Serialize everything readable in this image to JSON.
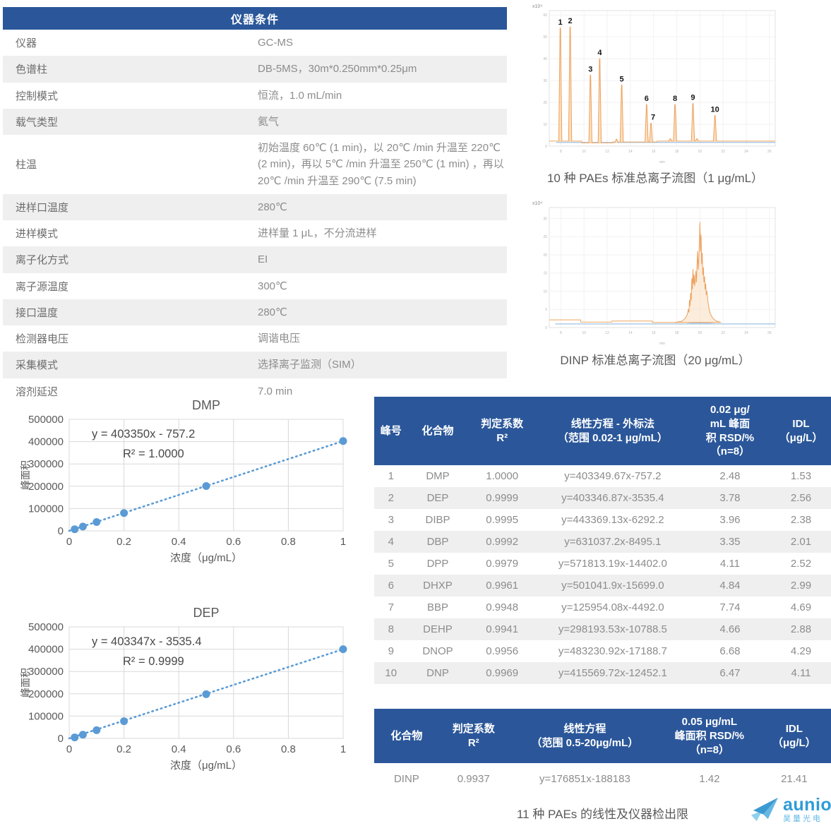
{
  "captions": {
    "bottom": "11 种 PAEs 的线性及仪器检出限"
  },
  "logo": {
    "brand": "aunion",
    "sub": "昊量光电"
  },
  "conditions_table": {
    "title": "仪器条件",
    "rows": [
      [
        "仪器",
        "GC-MS"
      ],
      [
        "色谱柱",
        "DB-5MS，30m*0.250mm*0.25μm"
      ],
      [
        "控制模式",
        "恒流，1.0 mL/min"
      ],
      [
        "载气类型",
        "氦气"
      ],
      [
        "柱温",
        "初始温度 60℃ (1 min)，以 20℃ /min 升温至 220℃ (2 min)，再以 5℃ /min 升温至 250℃ (1 min) ，再以 20℃ /min 升温至 290℃ (7.5 min)"
      ],
      [
        "进样口温度",
        "280℃"
      ],
      [
        "进样模式",
        "进样量 1 μL，不分流进样"
      ],
      [
        "离子化方式",
        "EI"
      ],
      [
        "离子源温度",
        "300℃"
      ],
      [
        "接口温度",
        "280℃"
      ],
      [
        "检测器电压",
        "调谐电压"
      ],
      [
        "采集模式",
        "选择离子监测（SIM）"
      ],
      [
        "溶剂延迟",
        "7.0 min"
      ]
    ]
  },
  "linearity_table": {
    "headers": [
      {
        "lines": [
          "峰号"
        ]
      },
      {
        "lines": [
          "化合物"
        ]
      },
      {
        "lines": [
          "判定系数",
          "R²"
        ]
      },
      {
        "lines": [
          "线性方程 - 外标法",
          "（范围 0.02-1 μg/mL）"
        ]
      },
      {
        "lines": [
          "0.02 μg/",
          "mL 峰面",
          "积 RSD/%",
          "（n=8）"
        ]
      },
      {
        "lines": [
          "IDL",
          "（μg/L）"
        ]
      }
    ],
    "rows": [
      [
        "1",
        "DMP",
        "1.0000",
        "y=403349.67x-757.2",
        "2.48",
        "1.53"
      ],
      [
        "2",
        "DEP",
        "0.9999",
        "y=403346.87x-3535.4",
        "3.78",
        "2.56"
      ],
      [
        "3",
        "DIBP",
        "0.9995",
        "y=443369.13x-6292.2",
        "3.96",
        "2.38"
      ],
      [
        "4",
        "DBP",
        "0.9992",
        "y=631037.2x-8495.1",
        "3.35",
        "2.01"
      ],
      [
        "5",
        "DPP",
        "0.9979",
        "y=571813.19x-14402.0",
        "4.11",
        "2.52"
      ],
      [
        "6",
        "DHXP",
        "0.9961",
        "y=501041.9x-15699.0",
        "4.84",
        "2.99"
      ],
      [
        "7",
        "BBP",
        "0.9948",
        "y=125954.08x-4492.0",
        "7.74",
        "4.69"
      ],
      [
        "8",
        "DEHP",
        "0.9941",
        "y=298193.53x-10788.5",
        "4.66",
        "2.88"
      ],
      [
        "9",
        "DNOP",
        "0.9956",
        "y=483230.92x-17188.7",
        "6.68",
        "4.29"
      ],
      [
        "10",
        "DNP",
        "0.9969",
        "y=415569.72x-12452.1",
        "6.47",
        "4.11"
      ]
    ]
  },
  "dinp_table": {
    "headers": [
      {
        "lines": [
          "化合物"
        ]
      },
      {
        "lines": [
          "判定系数",
          "R²"
        ]
      },
      {
        "lines": [
          "线性方程",
          "（范围 0.5-20μg/mL）"
        ]
      },
      {
        "lines": [
          "0.05 μg/mL",
          "峰面积 RSD/%",
          "（n=8）"
        ]
      },
      {
        "lines": [
          "IDL",
          "（μg/L）"
        ]
      }
    ],
    "rows": [
      [
        "DINP",
        "0.9937",
        "y=176851x-188183",
        "1.42",
        "21.41"
      ]
    ]
  },
  "chart_data": [
    {
      "type": "line",
      "subtype": "chromatogram",
      "title": "10 种 PAEs 标准总离子流图（1 μg/mL）",
      "y_unit": "x10⁴",
      "x_unit": "min",
      "xlim": [
        7,
        26.5
      ],
      "ylim": [
        0,
        62
      ],
      "xticks": [
        8,
        10,
        12,
        14,
        16,
        18,
        20,
        22,
        24,
        26
      ],
      "yticks": [
        0,
        10,
        20,
        30,
        40,
        50,
        60
      ],
      "baseline": [
        [
          7,
          2.3
        ],
        [
          9.8,
          2.3
        ],
        [
          9.8,
          1.5
        ],
        [
          12.5,
          1.5
        ],
        [
          12.5,
          1.9
        ],
        [
          16.2,
          1.9
        ],
        [
          16.4,
          2.3
        ],
        [
          26.5,
          2.3
        ]
      ],
      "blue_line": {
        "from": 7.6,
        "to": 26.5,
        "y": 1.7
      },
      "peaks": [
        {
          "label": "1",
          "x": 7.95,
          "h": 54,
          "base": 2.3
        },
        {
          "label": "2",
          "x": 8.8,
          "h": 54.5,
          "base": 2.3
        },
        {
          "label": "3",
          "x": 10.55,
          "h": 32.5,
          "base": 1.5
        },
        {
          "label": "4",
          "x": 11.35,
          "h": 40,
          "base": 1.5
        },
        {
          "label": "5",
          "x": 13.25,
          "h": 28,
          "base": 1.9
        },
        {
          "label": "6",
          "x": 15.4,
          "h": 19,
          "base": 1.9
        },
        {
          "label": "7",
          "x": 15.78,
          "h": 10.5,
          "base": 1.9,
          "ldx": 3
        },
        {
          "label": "8",
          "x": 17.85,
          "h": 19,
          "base": 2.3
        },
        {
          "label": "9",
          "x": 19.4,
          "h": 19.5,
          "base": 2.3
        },
        {
          "label": "10",
          "x": 21.3,
          "h": 14,
          "base": 2.3
        },
        {
          "x": 12.8,
          "h": 3.2,
          "base": 1.5
        },
        {
          "x": 17.45,
          "h": 3.4,
          "base": 2.3
        },
        {
          "x": 19.75,
          "h": 3.4,
          "base": 2.3
        }
      ]
    },
    {
      "type": "line",
      "subtype": "chromatogram",
      "title": "DINP 标准总离子流图（20 μg/mL）",
      "y_unit": "x10⁴",
      "x_unit": "min",
      "xlim": [
        7,
        26.5
      ],
      "ylim": [
        0,
        33
      ],
      "xticks": [
        8,
        10,
        12,
        14,
        16,
        18,
        20,
        22,
        24,
        26
      ],
      "yticks": [
        0,
        5,
        10,
        15,
        20,
        25,
        30
      ],
      "baseline": [
        [
          7,
          2.1
        ],
        [
          9.7,
          2.1
        ],
        [
          9.7,
          1.5
        ],
        [
          12.4,
          1.5
        ],
        [
          12.4,
          1.8
        ],
        [
          15.9,
          1.8
        ],
        [
          15.9,
          1.4
        ],
        [
          17.8,
          1.4
        ]
      ],
      "blue_line": {
        "from": 7.5,
        "to": 26.5,
        "y": 1.0
      },
      "blue_bump": {
        "from": 18.6,
        "to": 21.5,
        "h": 2.0,
        "base": 1.0
      },
      "envelope": [
        [
          17.8,
          1.4
        ],
        [
          18.4,
          1.7
        ],
        [
          18.7,
          2.4
        ],
        [
          18.9,
          3.5
        ],
        [
          19.0,
          5.0
        ],
        [
          19.05,
          4.2
        ],
        [
          19.1,
          7.5
        ],
        [
          19.15,
          6.0
        ],
        [
          19.2,
          9.5
        ],
        [
          19.25,
          7.5
        ],
        [
          19.3,
          13.5
        ],
        [
          19.35,
          10.5
        ],
        [
          19.4,
          16.0
        ],
        [
          19.45,
          12.0
        ],
        [
          19.5,
          14.5
        ],
        [
          19.55,
          11.5
        ],
        [
          19.6,
          13.0
        ],
        [
          19.65,
          15.5
        ],
        [
          19.7,
          12.5
        ],
        [
          19.75,
          17.0
        ],
        [
          19.8,
          21.0
        ],
        [
          19.85,
          16.0
        ],
        [
          19.9,
          18.5
        ],
        [
          19.95,
          23.0
        ],
        [
          20.0,
          29.0
        ],
        [
          20.05,
          21.0
        ],
        [
          20.1,
          25.5
        ],
        [
          20.15,
          17.5
        ],
        [
          20.2,
          20.5
        ],
        [
          20.25,
          14.5
        ],
        [
          20.3,
          16.5
        ],
        [
          20.35,
          12.5
        ],
        [
          20.4,
          14.0
        ],
        [
          20.45,
          10.5
        ],
        [
          20.5,
          12.0
        ],
        [
          20.55,
          9.0
        ],
        [
          20.6,
          10.0
        ],
        [
          20.7,
          7.0
        ],
        [
          20.8,
          5.0
        ],
        [
          20.9,
          3.8
        ],
        [
          21.1,
          2.6
        ],
        [
          21.4,
          1.8
        ],
        [
          21.8,
          1.4
        ]
      ]
    },
    {
      "type": "scatter",
      "title": "DMP",
      "equation": "y = 403350x - 757.2",
      "r2": "R² = 1.0000",
      "xlabel": "浓度（μg/mL）",
      "ylabel": "峰面积",
      "xlim": [
        0,
        1
      ],
      "ylim": [
        0,
        500000
      ],
      "xticks": [
        0,
        0.2,
        0.4,
        0.6,
        0.8,
        1
      ],
      "yticks": [
        0,
        100000,
        200000,
        300000,
        400000,
        500000
      ],
      "x": [
        0.02,
        0.05,
        0.1,
        0.2,
        0.5,
        1
      ],
      "y": [
        7310,
        19410,
        39578,
        79913,
        200918,
        402593
      ],
      "slope": 403350,
      "intercept": -757.2
    },
    {
      "type": "scatter",
      "title": "DEP",
      "equation": "y = 403347x - 3535.4",
      "r2": "R² = 0.9999",
      "xlabel": "浓度（μg/mL）",
      "ylabel": "峰面积",
      "xlim": [
        0,
        1
      ],
      "ylim": [
        0,
        500000
      ],
      "xticks": [
        0,
        0.2,
        0.4,
        0.6,
        0.8,
        1
      ],
      "yticks": [
        0,
        100000,
        200000,
        300000,
        400000,
        500000
      ],
      "x": [
        0.02,
        0.05,
        0.1,
        0.2,
        0.5,
        1
      ],
      "y": [
        4532,
        16632,
        36799,
        77134,
        198138,
        399812
      ],
      "slope": 403347,
      "intercept": -3535.4
    }
  ]
}
